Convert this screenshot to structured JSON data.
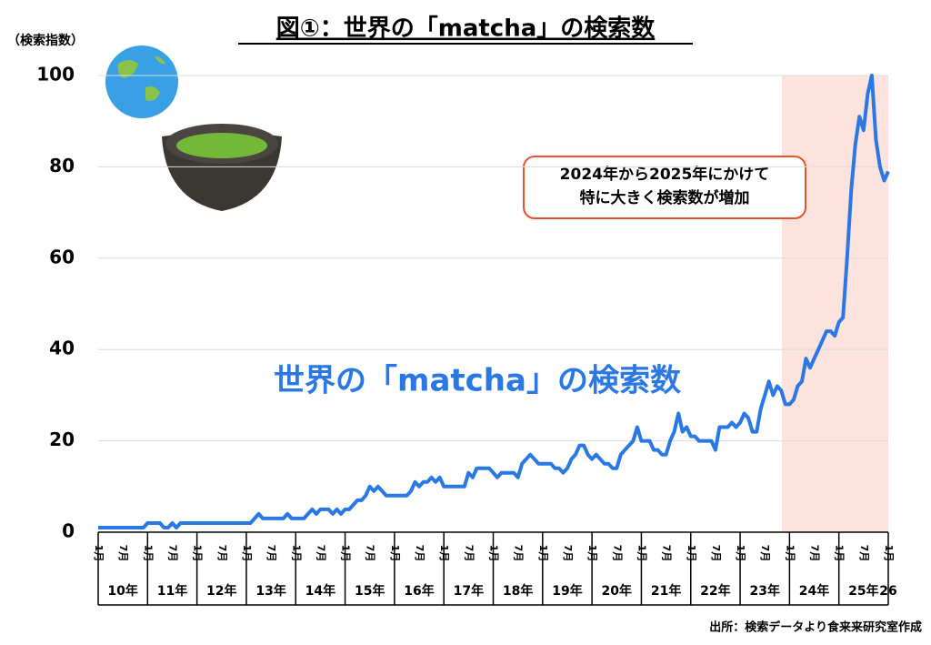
{
  "chart_data": {
    "type": "line",
    "title": "図①：世界の「matcha」の検索数",
    "y_label": "（検索指数）",
    "annotation": [
      "2024年から2025年にかけて",
      "特に大きく検索数が増加"
    ],
    "source": "出所：検索データより食来来研究室作成",
    "categories": [
      "1月",
      null,
      null,
      null,
      null,
      null,
      "7月",
      null,
      null,
      null,
      null,
      null,
      "1月",
      null,
      null,
      null,
      null,
      null,
      "7月",
      null,
      null,
      null,
      null,
      null,
      "1月",
      null,
      null,
      null,
      null,
      null,
      "7月",
      null,
      null,
      null,
      null,
      null,
      "1月",
      null,
      null,
      null,
      null,
      null,
      "7月",
      null,
      null,
      null,
      null,
      null,
      "1月",
      null,
      null,
      null,
      null,
      null,
      "7月",
      null,
      null,
      null,
      null,
      null,
      "1月",
      null,
      null,
      null,
      null,
      null,
      "7月",
      null,
      null,
      null,
      null,
      null,
      "1月",
      null,
      null,
      null,
      null,
      null,
      "7月",
      null,
      null,
      null,
      null,
      null,
      "1月",
      null,
      null,
      null,
      null,
      null,
      "7月",
      null,
      null,
      null,
      null,
      null,
      "1月",
      null,
      null,
      null,
      null,
      null,
      "7月",
      null,
      null,
      null,
      null,
      null,
      "1月",
      null,
      null,
      null,
      null,
      null,
      "7月",
      null,
      null,
      null,
      null,
      null,
      "1月",
      null,
      null,
      null,
      null,
      null,
      "7月",
      null,
      null,
      null,
      null,
      null,
      "1月",
      null,
      null,
      null,
      null,
      null,
      "7月",
      null,
      null,
      null,
      null,
      null,
      "1月",
      null,
      null,
      null,
      null,
      null,
      "7月",
      null,
      null,
      null,
      null,
      null,
      "1月",
      null,
      null,
      null,
      null,
      null,
      "7月",
      null,
      null,
      null,
      null,
      null,
      "1月",
      null,
      null,
      null,
      null,
      null,
      "7月",
      null,
      null,
      null,
      null,
      null,
      "1月",
      null,
      null,
      null,
      null,
      null,
      "7月",
      null,
      null,
      null,
      null,
      null,
      "1月"
    ],
    "x_groups": [
      "10年",
      "11年",
      "12年",
      "13年",
      "14年",
      "15年",
      "16年",
      "17年",
      "18年",
      "19年",
      "20年",
      "21年",
      "22年",
      "23年",
      "24年",
      "25年",
      "26"
    ],
    "series": [
      {
        "name": "世界の「matcha」の検索数",
        "color": "#2a78e4",
        "values": [
          1,
          1,
          1,
          1,
          1,
          1,
          1,
          1,
          1,
          1,
          1,
          1,
          2,
          2,
          2,
          2,
          1,
          1,
          2,
          1,
          2,
          2,
          2,
          2,
          2,
          2,
          2,
          2,
          2,
          2,
          2,
          2,
          2,
          2,
          2,
          2,
          2,
          2,
          3,
          4,
          3,
          3,
          3,
          3,
          3,
          3,
          4,
          3,
          3,
          3,
          3,
          4,
          5,
          4,
          5,
          5,
          5,
          4,
          5,
          4,
          5,
          5,
          6,
          7,
          7,
          8,
          10,
          9,
          10,
          9,
          8,
          8,
          8,
          8,
          8,
          8,
          9,
          11,
          10,
          11,
          11,
          12,
          11,
          12,
          10,
          10,
          10,
          10,
          10,
          10,
          13,
          12,
          14,
          14,
          14,
          14,
          13,
          12,
          13,
          13,
          13,
          13,
          12,
          15,
          16,
          17,
          16,
          15,
          15,
          15,
          15,
          14,
          14,
          13,
          14,
          16,
          17,
          19,
          19,
          17,
          16,
          17,
          16,
          15,
          15,
          14,
          14,
          17,
          18,
          19,
          20,
          23,
          20,
          20,
          20,
          18,
          18,
          17,
          17,
          20,
          22,
          26,
          22,
          23,
          21,
          21,
          20,
          20,
          20,
          20,
          18,
          23,
          23,
          23,
          24,
          23,
          24,
          26,
          25,
          22,
          22,
          27,
          30,
          33,
          30,
          32,
          31,
          28,
          28,
          29,
          32,
          33,
          38,
          36,
          38,
          40,
          42,
          44,
          44,
          43,
          46,
          47,
          60,
          75,
          85,
          91,
          88,
          96,
          100,
          86,
          80,
          77,
          79
        ]
      }
    ],
    "ylim": [
      0,
      100
    ],
    "yticks": [
      0,
      20,
      40,
      60,
      80,
      100
    ],
    "grid": true
  }
}
